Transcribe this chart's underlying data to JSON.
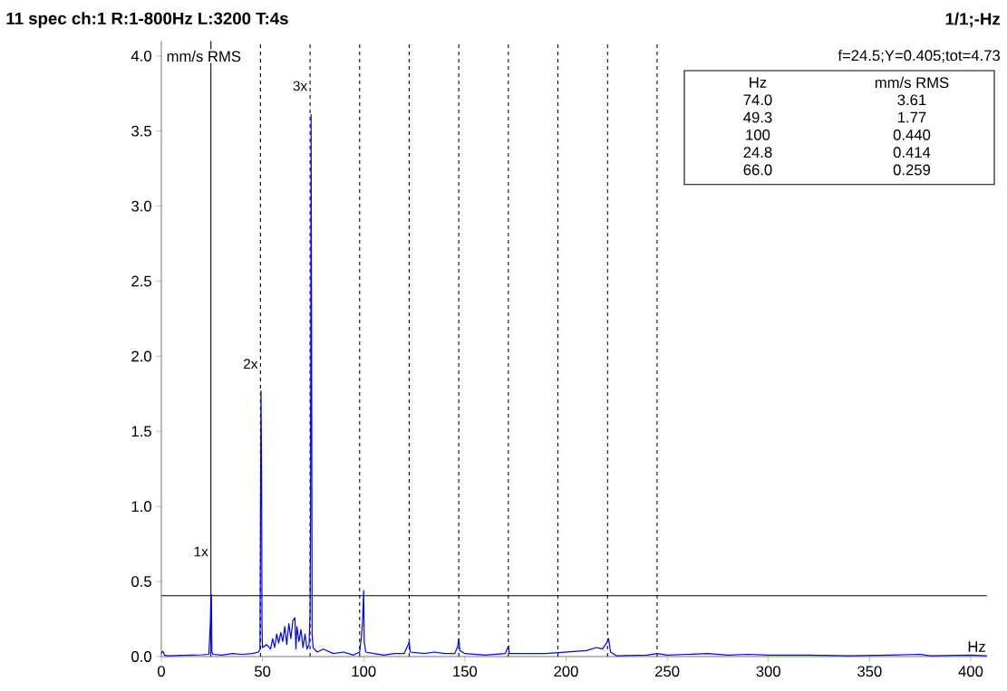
{
  "chart_data": {
    "type": "line",
    "title": "11 spec ch:1 R:1-800Hz L:3200 T:4s",
    "xlabel": "Hz",
    "ylabel": "mm/s RMS",
    "xlim": [
      0,
      408
    ],
    "ylim": [
      0,
      4.1
    ],
    "xticks": [
      0,
      50,
      100,
      150,
      200,
      250,
      300,
      350,
      400
    ],
    "yticks": [
      {
        "value": 0,
        "label": "0.0"
      },
      {
        "value": 0.5,
        "label": "0.5"
      },
      {
        "value": 1,
        "label": "1.0"
      },
      {
        "value": 1.5,
        "label": "1.5"
      },
      {
        "value": 2,
        "label": "2.0"
      },
      {
        "value": 2.5,
        "label": "2.5"
      },
      {
        "value": 3,
        "label": "3.0"
      },
      {
        "value": 3.5,
        "label": "3.5"
      },
      {
        "value": 4,
        "label": "4.0"
      }
    ],
    "series": [
      {
        "color": "#0000ff",
        "x": [
          0,
          0.5,
          1,
          1.5,
          3,
          10,
          15,
          20,
          23.5,
          24.25,
          24.5,
          24.75,
          25,
          25.5,
          30,
          35,
          40,
          45,
          48,
          48.75,
          49.25,
          49.5,
          49.75,
          50,
          52,
          54,
          55,
          56,
          57,
          58,
          59,
          60,
          61,
          62,
          63,
          64,
          65,
          66,
          66.5,
          67,
          68,
          69,
          70,
          71,
          72,
          73,
          73.5,
          73.75,
          74,
          74.25,
          74.5,
          75,
          77,
          80,
          85,
          90,
          95,
          98,
          99,
          99.5,
          100,
          100.25,
          101,
          105,
          110,
          115,
          120,
          122,
          122.5,
          123,
          130,
          135,
          140,
          145,
          146.5,
          147,
          147.5,
          150,
          160,
          170,
          171.5,
          172,
          180,
          190,
          200,
          210,
          215,
          218,
          220.5,
          221,
          222,
          225,
          240,
          245,
          250,
          260,
          270,
          280,
          290,
          300,
          320,
          340,
          360,
          375,
          380,
          400,
          408
        ],
        "values": [
          0.02,
          0.035,
          0.03,
          0.01,
          0.005,
          0.008,
          0.01,
          0.012,
          0.015,
          0.24,
          0.405,
          0.414,
          0.03,
          0.015,
          0.01,
          0.02,
          0.015,
          0.02,
          0.03,
          0.05,
          1.77,
          1.33,
          0.2,
          0.06,
          0.08,
          0.05,
          0.12,
          0.06,
          0.15,
          0.09,
          0.16,
          0.1,
          0.2,
          0.08,
          0.22,
          0.12,
          0.24,
          0.259,
          0.05,
          0.2,
          0.1,
          0.18,
          0.06,
          0.15,
          0.05,
          0.08,
          0.3,
          1.0,
          3.61,
          2.2,
          0.15,
          0.06,
          0.03,
          0.05,
          0.02,
          0.03,
          0.01,
          0.03,
          0.15,
          0.25,
          0.44,
          0.1,
          0.03,
          0.02,
          0.01,
          0.02,
          0.02,
          0.08,
          0.1,
          0.03,
          0.02,
          0.03,
          0.02,
          0.02,
          0.07,
          0.12,
          0.04,
          0.02,
          0.01,
          0.02,
          0.07,
          0.02,
          0.02,
          0.02,
          0.03,
          0.04,
          0.06,
          0.05,
          0.1,
          0.12,
          0.03,
          0.005,
          0.01,
          0.02,
          0.01,
          0.015,
          0.02,
          0.01,
          0.015,
          0.01,
          0.01,
          0.005,
          0.01,
          0.015,
          0.005,
          0.01,
          0.005
        ]
      }
    ],
    "ref_lines": [
      {
        "axis": "x",
        "value": 24.5,
        "line_style": "solid",
        "color": "#000000"
      },
      {
        "axis": "y",
        "value": 0.405,
        "line_style": "solid",
        "color": "#000000"
      },
      {
        "axis": "x",
        "value": 49,
        "line_style": "dashed",
        "color": "#000000"
      },
      {
        "axis": "x",
        "value": 73.5,
        "line_style": "dashed",
        "color": "#000000"
      },
      {
        "axis": "x",
        "value": 98,
        "line_style": "dashed",
        "color": "#000000"
      },
      {
        "axis": "x",
        "value": 122.5,
        "line_style": "dashed",
        "color": "#000000"
      },
      {
        "axis": "x",
        "value": 147,
        "line_style": "dashed",
        "color": "#000000"
      },
      {
        "axis": "x",
        "value": 171.5,
        "line_style": "dashed",
        "color": "#000000"
      },
      {
        "axis": "x",
        "value": 196,
        "line_style": "dashed",
        "color": "#000000"
      },
      {
        "axis": "x",
        "value": 220.5,
        "line_style": "dashed",
        "color": "#000000"
      },
      {
        "axis": "x",
        "value": 245,
        "line_style": "dashed",
        "color": "#000000"
      }
    ],
    "annotations": [
      {
        "text": "1x",
        "x": 24.5,
        "y": 0.65
      },
      {
        "text": "2x",
        "x": 49,
        "y": 1.9
      },
      {
        "text": "3x",
        "x": 73.5,
        "y": 3.75
      },
      "1/1;-Hz",
      "f=24.5;Y=0.405;tot=4.73",
      "Hz",
      "mm/s RMS",
      "74.0",
      "3.61",
      "49.3",
      "1.77",
      "100",
      "0.440",
      "24.8",
      "0.414",
      "66.0",
      "0.259"
    ]
  }
}
